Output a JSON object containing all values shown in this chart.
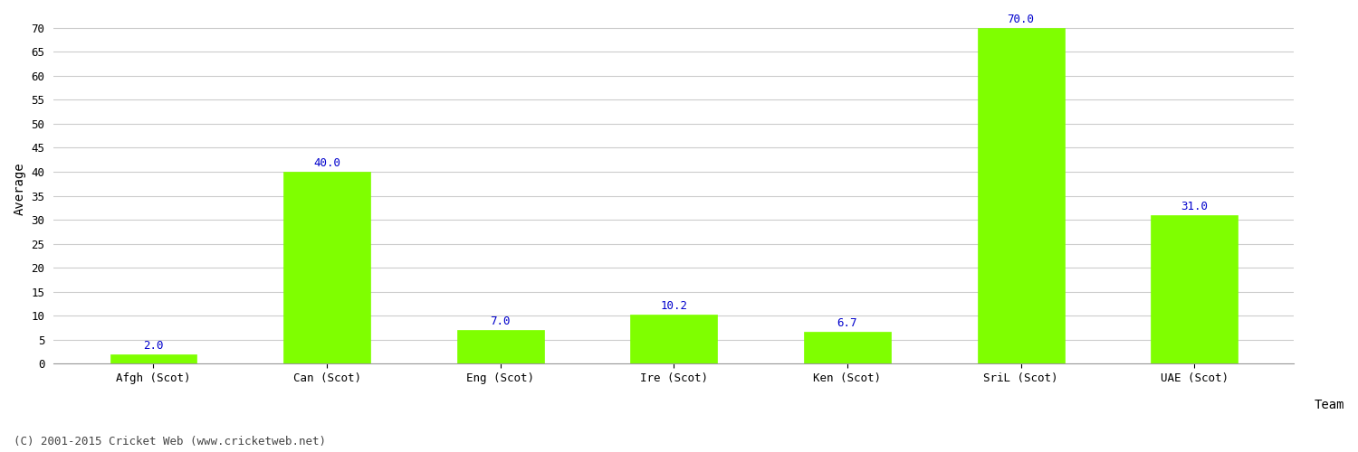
{
  "categories": [
    "Afgh (Scot)",
    "Can (Scot)",
    "Eng (Scot)",
    "Ire (Scot)",
    "Ken (Scot)",
    "SriL (Scot)",
    "UAE (Scot)"
  ],
  "values": [
    2.0,
    40.0,
    7.0,
    10.2,
    6.7,
    70.0,
    31.0
  ],
  "bar_color": "#7fff00",
  "bar_edge_color": "#7fff00",
  "ylabel": "Average",
  "ylim": [
    0,
    73
  ],
  "yticks": [
    0,
    5,
    10,
    15,
    20,
    25,
    30,
    35,
    40,
    45,
    50,
    55,
    60,
    65,
    70
  ],
  "label_color": "#0000cc",
  "label_fontsize": 9,
  "axis_label_fontsize": 10,
  "tick_fontsize": 9,
  "bg_color": "#ffffff",
  "grid_color": "#cccccc",
  "footer_text": "(C) 2001-2015 Cricket Web (www.cricketweb.net)",
  "footer_fontsize": 9,
  "footer_color": "#444444",
  "team_label": "Team"
}
